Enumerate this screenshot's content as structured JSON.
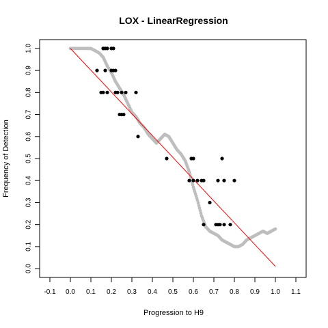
{
  "chart_data": {
    "type": "scatter",
    "title": "LOX - LinearRegression",
    "xlabel": "Progression to H9",
    "ylabel": "Frequency of Detection",
    "xlim": [
      -0.15,
      1.15
    ],
    "ylim": [
      -0.04,
      1.04
    ],
    "xticks": [
      "-0.1",
      "0.0",
      "0.1",
      "0.2",
      "0.3",
      "0.4",
      "0.5",
      "0.6",
      "0.7",
      "0.8",
      "0.9",
      "1.0",
      "1.1"
    ],
    "yticks": [
      "0.0",
      "0.1",
      "0.2",
      "0.3",
      "0.4",
      "0.5",
      "0.6",
      "0.7",
      "0.8",
      "0.9",
      "1.0"
    ],
    "grid": false,
    "colors": {
      "points": "#000000",
      "smooth": "#bebebe",
      "fit": "#ff0000",
      "frame": "#000000"
    },
    "points": [
      [
        0.16,
        1.0
      ],
      [
        0.17,
        1.0
      ],
      [
        0.18,
        1.0
      ],
      [
        0.2,
        1.0
      ],
      [
        0.21,
        1.0
      ],
      [
        0.13,
        0.9
      ],
      [
        0.17,
        0.9
      ],
      [
        0.2,
        0.9
      ],
      [
        0.21,
        0.9
      ],
      [
        0.22,
        0.9
      ],
      [
        0.15,
        0.8
      ],
      [
        0.16,
        0.8
      ],
      [
        0.18,
        0.8
      ],
      [
        0.22,
        0.8
      ],
      [
        0.23,
        0.8
      ],
      [
        0.25,
        0.8
      ],
      [
        0.27,
        0.8
      ],
      [
        0.32,
        0.8
      ],
      [
        0.24,
        0.7
      ],
      [
        0.25,
        0.7
      ],
      [
        0.26,
        0.7
      ],
      [
        0.33,
        0.6
      ],
      [
        0.47,
        0.5
      ],
      [
        0.59,
        0.5
      ],
      [
        0.6,
        0.5
      ],
      [
        0.74,
        0.5
      ],
      [
        0.58,
        0.4
      ],
      [
        0.6,
        0.4
      ],
      [
        0.62,
        0.4
      ],
      [
        0.64,
        0.4
      ],
      [
        0.65,
        0.4
      ],
      [
        0.72,
        0.4
      ],
      [
        0.75,
        0.4
      ],
      [
        0.8,
        0.4
      ],
      [
        0.68,
        0.3
      ],
      [
        0.65,
        0.2
      ],
      [
        0.71,
        0.2
      ],
      [
        0.72,
        0.2
      ],
      [
        0.73,
        0.2
      ],
      [
        0.75,
        0.2
      ],
      [
        0.78,
        0.2
      ]
    ],
    "smooth_curve": [
      [
        0.0,
        1.0
      ],
      [
        0.02,
        1.0
      ],
      [
        0.05,
        1.0
      ],
      [
        0.08,
        1.0
      ],
      [
        0.1,
        1.0
      ],
      [
        0.12,
        0.99
      ],
      [
        0.14,
        0.98
      ],
      [
        0.16,
        0.96
      ],
      [
        0.18,
        0.92
      ],
      [
        0.2,
        0.89
      ],
      [
        0.22,
        0.85
      ],
      [
        0.24,
        0.82
      ],
      [
        0.26,
        0.79
      ],
      [
        0.28,
        0.75
      ],
      [
        0.3,
        0.71
      ],
      [
        0.32,
        0.69
      ],
      [
        0.34,
        0.66
      ],
      [
        0.36,
        0.64
      ],
      [
        0.38,
        0.61
      ],
      [
        0.4,
        0.59
      ],
      [
        0.42,
        0.57
      ],
      [
        0.44,
        0.59
      ],
      [
        0.46,
        0.61
      ],
      [
        0.48,
        0.6
      ],
      [
        0.5,
        0.57
      ],
      [
        0.52,
        0.54
      ],
      [
        0.54,
        0.52
      ],
      [
        0.56,
        0.49
      ],
      [
        0.58,
        0.44
      ],
      [
        0.6,
        0.37
      ],
      [
        0.62,
        0.31
      ],
      [
        0.64,
        0.24
      ],
      [
        0.66,
        0.19
      ],
      [
        0.68,
        0.17
      ],
      [
        0.7,
        0.16
      ],
      [
        0.72,
        0.15
      ],
      [
        0.74,
        0.13
      ],
      [
        0.76,
        0.12
      ],
      [
        0.78,
        0.11
      ],
      [
        0.8,
        0.1
      ],
      [
        0.82,
        0.1
      ],
      [
        0.84,
        0.11
      ],
      [
        0.86,
        0.13
      ],
      [
        0.88,
        0.14
      ],
      [
        0.9,
        0.15
      ],
      [
        0.92,
        0.16
      ],
      [
        0.94,
        0.17
      ],
      [
        0.96,
        0.16
      ],
      [
        0.98,
        0.17
      ],
      [
        1.0,
        0.18
      ]
    ],
    "fit_line": [
      [
        0.0,
        1.0
      ],
      [
        1.0,
        0.01
      ]
    ]
  }
}
